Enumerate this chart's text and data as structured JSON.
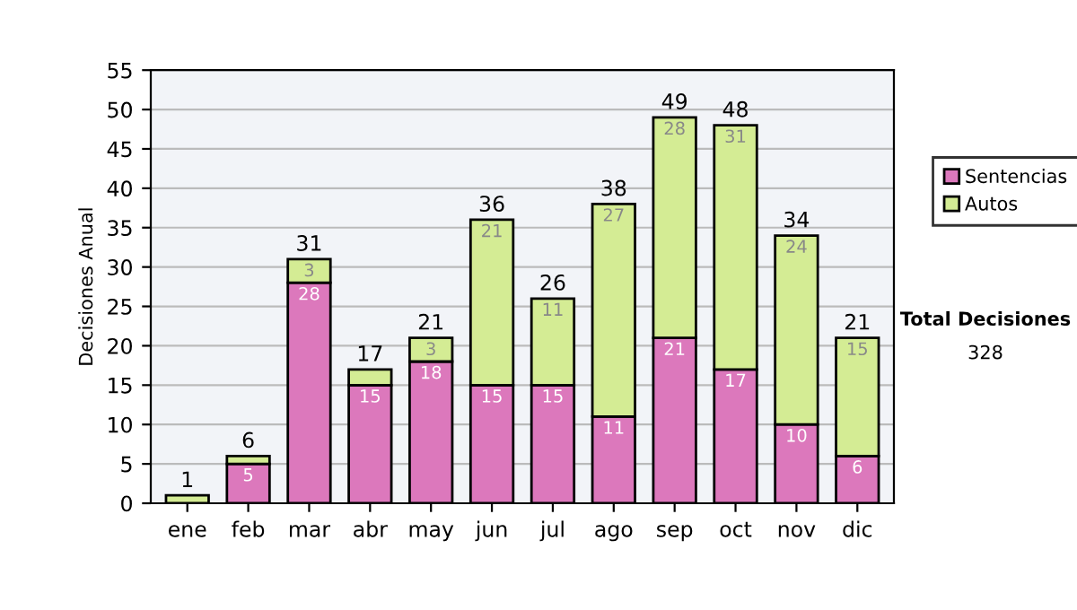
{
  "chart_data": {
    "type": "bar",
    "stacked": true,
    "ylabel": "Decisiones Anual",
    "categories": [
      "ene",
      "feb",
      "mar",
      "abr",
      "may",
      "jun",
      "jul",
      "ago",
      "sep",
      "oct",
      "nov",
      "dic"
    ],
    "series": [
      {
        "name": "Sentencias",
        "color": "#dc78bc",
        "values": [
          0,
          5,
          28,
          15,
          18,
          15,
          15,
          11,
          21,
          17,
          10,
          6
        ],
        "value_labels": [
          null,
          "5",
          "28",
          "15",
          "18",
          "15",
          "15",
          "11",
          "21",
          "17",
          "10",
          "6"
        ]
      },
      {
        "name": "Autos",
        "color": "#d4ec94",
        "values": [
          1,
          1,
          3,
          2,
          3,
          21,
          11,
          27,
          28,
          31,
          24,
          15
        ],
        "value_labels": [
          null,
          null,
          "3",
          null,
          "3",
          "21",
          "11",
          "27",
          "28",
          "31",
          "24",
          "15"
        ]
      }
    ],
    "totals": [
      "1",
      "6",
      "31",
      "17",
      "21",
      "36",
      "26",
      "38",
      "49",
      "48",
      "34",
      "21"
    ],
    "ylim": [
      0,
      55
    ],
    "yticks": [
      0,
      5,
      10,
      15,
      20,
      25,
      30,
      35,
      40,
      45,
      50,
      55
    ],
    "grid": "y",
    "legend": "right",
    "annotations": [
      "Total Decisiones",
      "328"
    ]
  }
}
